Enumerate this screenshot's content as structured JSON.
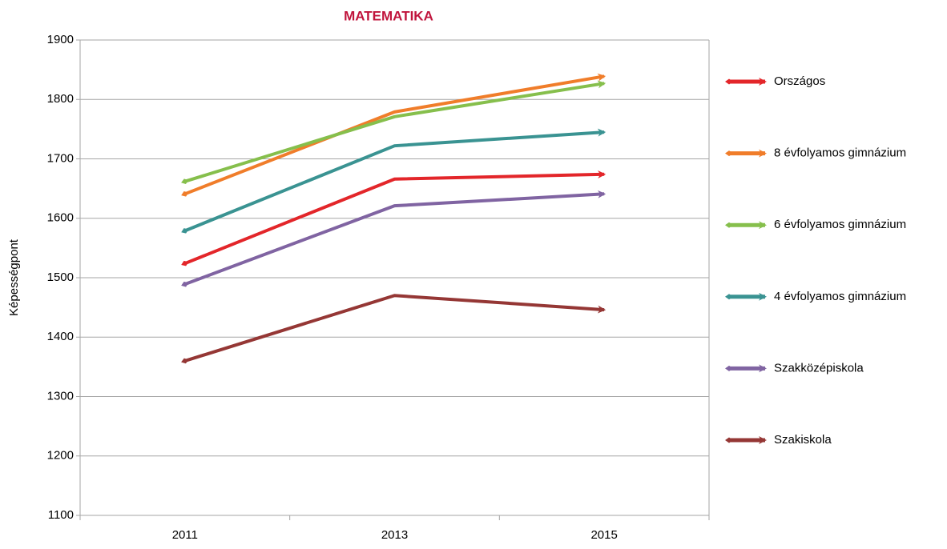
{
  "chart_data": {
    "type": "line",
    "title": "MATEMATIKA",
    "y_label": "Képességpont",
    "categories": [
      "2011",
      "2013",
      "2015"
    ],
    "series": [
      {
        "name": "Országos",
        "color": "#e3262a",
        "values": [
          1524,
          1666,
          1674
        ]
      },
      {
        "name": "8 évfolyamos gimnázium",
        "color": "#f07d2a",
        "values": [
          1641,
          1779,
          1839
        ]
      },
      {
        "name": "6 évfolyamos gimnázium",
        "color": "#86bf4c",
        "values": [
          1662,
          1771,
          1827
        ]
      },
      {
        "name": "4 évfolyamos gimnázium",
        "color": "#3a9392",
        "values": [
          1579,
          1722,
          1745
        ]
      },
      {
        "name": "Szakközépiskola",
        "color": "#8064a2",
        "values": [
          1489,
          1621,
          1641
        ]
      },
      {
        "name": "Szakiskola",
        "color": "#953735",
        "values": [
          1360,
          1470,
          1446
        ]
      }
    ],
    "ylim": [
      1100,
      1900
    ],
    "yticks": [
      1100,
      1200,
      1300,
      1400,
      1500,
      1600,
      1700,
      1800,
      1900
    ],
    "grid": true,
    "legend": "right"
  }
}
